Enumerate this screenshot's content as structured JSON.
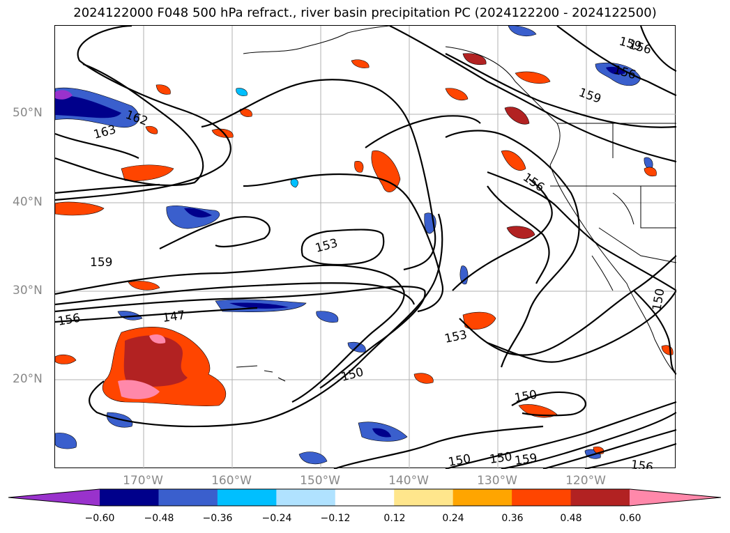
{
  "title": "2024122000 F048 500 hPa refract., river basin precipitation PC (2024122200 - 2024122500)",
  "map": {
    "lat_labels": [
      "50°N",
      "40°N",
      "30°N",
      "20°N"
    ],
    "lon_labels": [
      "170°W",
      "160°W",
      "150°W",
      "140°W",
      "130°W",
      "120°W"
    ],
    "contour_labels": [
      "162",
      "163",
      "159",
      "156",
      "147",
      "153",
      "150",
      "150",
      "153",
      "150",
      "159",
      "156",
      "159",
      "156",
      "156",
      "150",
      "150",
      "159",
      "156"
    ]
  },
  "colorbar": {
    "ticks": [
      "−0.60",
      "−0.48",
      "−0.36",
      "−0.24",
      "−0.12",
      "0.12",
      "0.24",
      "0.36",
      "0.48",
      "0.60"
    ],
    "colors": [
      "#9932CC",
      "#00008B",
      "#3A5FCD",
      "#00BFFF",
      "#B0E2FF",
      "#FFFFFF",
      "#FFE68C",
      "#FFA500",
      "#FF4500",
      "#B22222",
      "#FF88AA"
    ]
  }
}
